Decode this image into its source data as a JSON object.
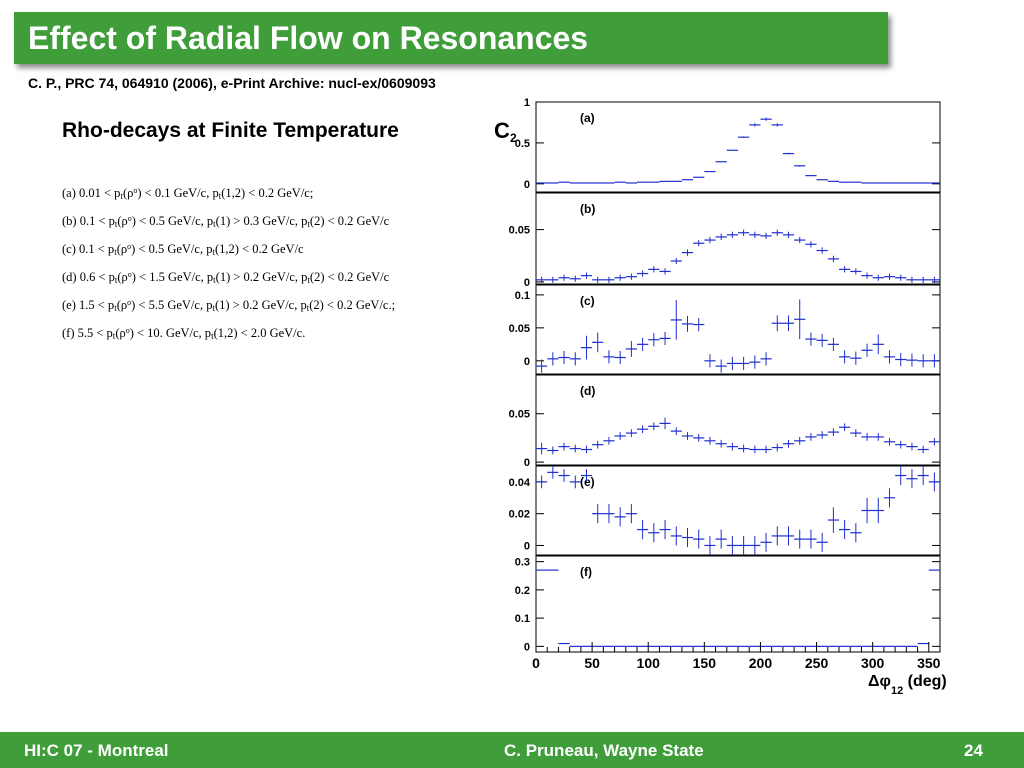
{
  "slide": {
    "title": "Effect of Radial Flow on Resonances",
    "citation": "C. P., PRC 74, 064910 (2006),  e-Print Archive: nucl-ex/0609093",
    "subtitle": "Rho-decays at Finite Temperature",
    "cuts": [
      [
        {
          "t": "(a) 0.01 < p"
        },
        {
          "sub": "t"
        },
        {
          "t": "(ρ"
        },
        {
          "sup": "o"
        },
        {
          "t": ") < 0.1 GeV/c, p"
        },
        {
          "sub": "t"
        },
        {
          "t": "(1,2) < 0.2 GeV/c;"
        }
      ],
      [
        {
          "t": "(b) 0.1 < p"
        },
        {
          "sub": "t"
        },
        {
          "t": "(ρ"
        },
        {
          "sup": "o"
        },
        {
          "t": ") < 0.5 GeV/c, p"
        },
        {
          "sub": "t"
        },
        {
          "t": "(1) > 0.3 GeV/c, p"
        },
        {
          "sub": "t"
        },
        {
          "t": "(2) < 0.2 GeV/c"
        }
      ],
      [
        {
          "t": "(c) 0.1 < p"
        },
        {
          "sub": "t"
        },
        {
          "t": "(ρ"
        },
        {
          "sup": "o"
        },
        {
          "t": ") < 0.5 GeV/c, p"
        },
        {
          "sub": "t"
        },
        {
          "t": "(1,2) < 0.2 GeV/c"
        }
      ],
      [
        {
          "t": "(d) 0.6 < p"
        },
        {
          "sub": "t"
        },
        {
          "t": "(ρ"
        },
        {
          "sup": "o"
        },
        {
          "t": ") < 1.5 GeV/c, p"
        },
        {
          "sub": "t"
        },
        {
          "t": "(1) > 0.2 GeV/c, p"
        },
        {
          "sub": "t"
        },
        {
          "t": "(2) < 0.2 GeV/c"
        }
      ],
      [
        {
          "t": "(e) 1.5 < p"
        },
        {
          "sub": "t"
        },
        {
          "t": "(ρ"
        },
        {
          "sup": "o"
        },
        {
          "t": ") < 5.5 GeV/c, p"
        },
        {
          "sub": "t"
        },
        {
          "t": "(1) > 0.2 GeV/c, p"
        },
        {
          "sub": "t"
        },
        {
          "t": "(2) < 0.2 GeV/c.;"
        }
      ],
      [
        {
          "t": "(f)  5.5 < p"
        },
        {
          "sub": "t"
        },
        {
          "t": "(ρ"
        },
        {
          "sup": "o"
        },
        {
          "t": ") < 10. GeV/c, p"
        },
        {
          "sub": "t"
        },
        {
          "t": "(1,2) < 2.0 GeV/c."
        }
      ]
    ]
  },
  "footer": {
    "left": "HI:C 07 - Montreal",
    "center": "C. Pruneau, Wayne State",
    "page": "24"
  },
  "colors": {
    "brand_green": "#3f9e3a",
    "marker_blue": "#1f2fd0"
  },
  "chart_data": {
    "type": "scatter",
    "ylabel": "C",
    "ylabel_sub": "2",
    "xlabel": "Δφ",
    "xlabel_sub": "12",
    "xlabel_unit": " (deg)",
    "xlim": [
      0,
      360
    ],
    "x_ticks": [
      0,
      50,
      100,
      150,
      200,
      250,
      300,
      350
    ],
    "bin_width": 10,
    "x": [
      5,
      15,
      25,
      35,
      45,
      55,
      65,
      75,
      85,
      95,
      105,
      115,
      125,
      135,
      145,
      155,
      165,
      175,
      185,
      195,
      205,
      215,
      225,
      235,
      245,
      255,
      265,
      275,
      285,
      295,
      305,
      315,
      325,
      335,
      345,
      355
    ],
    "panels": [
      {
        "label": "(a)",
        "ylim": [
          -0.1,
          1.0
        ],
        "yticks": [
          {
            "v": 0,
            "label": "0"
          },
          {
            "v": 0.5,
            "label": "0.5"
          },
          {
            "v": 1.0,
            "label": "1"
          }
        ],
        "values": [
          0.01,
          0.01,
          0.02,
          0.01,
          0.01,
          0.01,
          0.01,
          0.02,
          0.01,
          0.02,
          0.02,
          0.03,
          0.03,
          0.05,
          0.08,
          0.15,
          0.27,
          0.41,
          0.57,
          0.72,
          0.79,
          0.72,
          0.37,
          0.22,
          0.1,
          0.05,
          0.03,
          0.02,
          0.02,
          0.01,
          0.01,
          0.01,
          0.01,
          0.01,
          0.01,
          0.01
        ],
        "errors": [
          0,
          0,
          0,
          0,
          0,
          0,
          0,
          0,
          0,
          0,
          0,
          0,
          0,
          0,
          0,
          0,
          0,
          0,
          0.01,
          0.02,
          0.02,
          0.02,
          0.01,
          0.01,
          0,
          0,
          0,
          0,
          0,
          0,
          0,
          0,
          0,
          0,
          0,
          0
        ]
      },
      {
        "label": "(b)",
        "ylim": [
          -0.002,
          0.085
        ],
        "yticks": [
          {
            "v": 0,
            "label": "0"
          },
          {
            "v": 0.05,
            "label": "0.05"
          }
        ],
        "values": [
          0.002,
          0.002,
          0.004,
          0.003,
          0.006,
          0.002,
          0.002,
          0.004,
          0.005,
          0.008,
          0.012,
          0.01,
          0.02,
          0.028,
          0.037,
          0.04,
          0.043,
          0.045,
          0.047,
          0.045,
          0.044,
          0.047,
          0.045,
          0.04,
          0.036,
          0.03,
          0.022,
          0.012,
          0.01,
          0.006,
          0.004,
          0.005,
          0.004,
          0.002,
          0.002,
          0.002
        ],
        "errors": [
          0.003,
          0.003,
          0.003,
          0.003,
          0.003,
          0.003,
          0.003,
          0.003,
          0.003,
          0.003,
          0.003,
          0.003,
          0.003,
          0.003,
          0.003,
          0.003,
          0.003,
          0.003,
          0.003,
          0.003,
          0.003,
          0.003,
          0.003,
          0.003,
          0.003,
          0.003,
          0.003,
          0.003,
          0.003,
          0.003,
          0.003,
          0.003,
          0.003,
          0.003,
          0.003,
          0.003
        ]
      },
      {
        "label": "(c)",
        "ylim": [
          -0.02,
          0.115
        ],
        "yticks": [
          {
            "v": 0,
            "label": "0"
          },
          {
            "v": 0.05,
            "label": "0.05"
          },
          {
            "v": 0.1,
            "label": "0.1"
          }
        ],
        "values": [
          -0.008,
          0.003,
          0.005,
          0.003,
          0.02,
          0.028,
          0.006,
          0.005,
          0.018,
          0.025,
          0.032,
          0.034,
          0.062,
          0.056,
          0.055,
          0.0,
          -0.008,
          -0.004,
          -0.004,
          -0.002,
          0.003,
          0.057,
          0.057,
          0.063,
          0.033,
          0.031,
          0.025,
          0.006,
          0.004,
          0.016,
          0.025,
          0.006,
          0.002,
          0.001,
          0.0,
          0.0
        ],
        "errors": [
          0.01,
          0.01,
          0.01,
          0.01,
          0.018,
          0.015,
          0.01,
          0.01,
          0.012,
          0.01,
          0.01,
          0.01,
          0.03,
          0.012,
          0.01,
          0.01,
          0.01,
          0.01,
          0.01,
          0.01,
          0.01,
          0.012,
          0.012,
          0.03,
          0.01,
          0.01,
          0.01,
          0.01,
          0.01,
          0.01,
          0.015,
          0.01,
          0.01,
          0.01,
          0.01,
          0.01
        ]
      },
      {
        "label": "(d)",
        "ylim": [
          -0.003,
          0.09
        ],
        "yticks": [
          {
            "v": 0,
            "label": "0"
          },
          {
            "v": 0.05,
            "label": "0.05"
          }
        ],
        "values": [
          0.014,
          0.012,
          0.016,
          0.014,
          0.013,
          0.018,
          0.022,
          0.027,
          0.03,
          0.034,
          0.037,
          0.04,
          0.032,
          0.027,
          0.025,
          0.022,
          0.019,
          0.016,
          0.014,
          0.013,
          0.013,
          0.015,
          0.019,
          0.022,
          0.026,
          0.028,
          0.031,
          0.036,
          0.03,
          0.026,
          0.026,
          0.021,
          0.018,
          0.016,
          0.013,
          0.021
        ],
        "errors": [
          0.006,
          0.004,
          0.004,
          0.004,
          0.004,
          0.004,
          0.004,
          0.004,
          0.004,
          0.004,
          0.004,
          0.006,
          0.004,
          0.004,
          0.004,
          0.004,
          0.004,
          0.004,
          0.004,
          0.004,
          0.004,
          0.004,
          0.004,
          0.004,
          0.004,
          0.004,
          0.004,
          0.004,
          0.004,
          0.004,
          0.004,
          0.004,
          0.004,
          0.004,
          0.004,
          0.004
        ]
      },
      {
        "label": "(e)",
        "ylim": [
          -0.006,
          0.05
        ],
        "yticks": [
          {
            "v": 0,
            "label": "0"
          },
          {
            "v": 0.02,
            "label": "0.02"
          },
          {
            "v": 0.04,
            "label": "0.04"
          }
        ],
        "values": [
          0.04,
          0.046,
          0.044,
          0.04,
          0.044,
          0.02,
          0.02,
          0.018,
          0.02,
          0.01,
          0.008,
          0.01,
          0.006,
          0.005,
          0.004,
          0.0,
          0.004,
          0.0,
          0.0,
          0.0,
          0.002,
          0.006,
          0.006,
          0.004,
          0.004,
          0.002,
          0.016,
          0.01,
          0.008,
          0.022,
          0.022,
          0.03,
          0.044,
          0.042,
          0.044,
          0.04
        ],
        "errors": [
          0.004,
          0.004,
          0.004,
          0.004,
          0.004,
          0.006,
          0.006,
          0.006,
          0.006,
          0.006,
          0.006,
          0.006,
          0.006,
          0.006,
          0.006,
          0.006,
          0.006,
          0.006,
          0.006,
          0.006,
          0.006,
          0.006,
          0.006,
          0.006,
          0.006,
          0.006,
          0.008,
          0.006,
          0.006,
          0.008,
          0.008,
          0.006,
          0.006,
          0.006,
          0.006,
          0.006
        ]
      },
      {
        "label": "(f)",
        "ylim": [
          -0.02,
          0.32
        ],
        "yticks": [
          {
            "v": 0,
            "label": "0"
          },
          {
            "v": 0.1,
            "label": "0.1"
          },
          {
            "v": 0.2,
            "label": "0.2"
          },
          {
            "v": 0.3,
            "label": "0.3"
          }
        ],
        "values": [
          0.27,
          0.27,
          0.01,
          0.0,
          0.0,
          0.0,
          0.0,
          0.0,
          0.0,
          0.0,
          0.0,
          0.0,
          0.0,
          0.0,
          0.0,
          0.0,
          0.0,
          0.0,
          0.0,
          0.0,
          0.0,
          0.0,
          0.0,
          0.0,
          0.0,
          0.0,
          0.0,
          0.0,
          0.0,
          0.0,
          0.0,
          0.0,
          0.0,
          0.0,
          0.01,
          0.27
        ],
        "errors": [
          0,
          0,
          0,
          0,
          0,
          0,
          0,
          0,
          0,
          0,
          0,
          0,
          0,
          0,
          0,
          0,
          0,
          0,
          0,
          0,
          0,
          0,
          0,
          0,
          0,
          0,
          0,
          0,
          0,
          0,
          0,
          0,
          0,
          0,
          0,
          0
        ]
      }
    ]
  }
}
